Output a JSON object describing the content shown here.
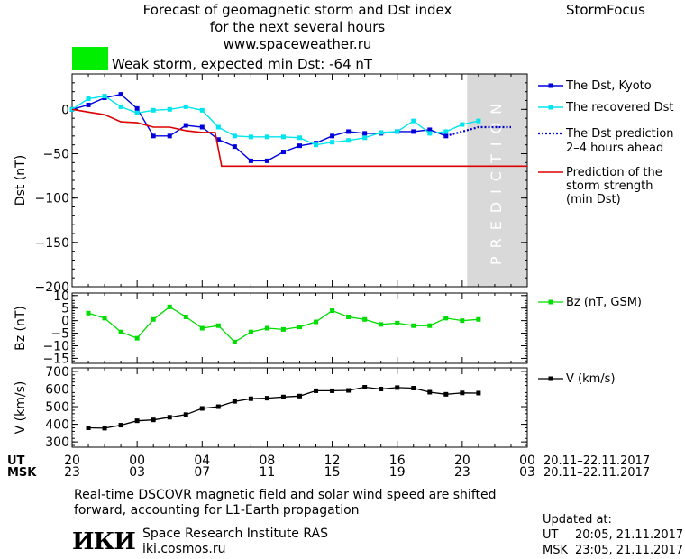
{
  "header": {
    "title_line1": "Forecast of geomagnetic storm and Dst index",
    "title_line2": "for the next several hours",
    "website": "www.spaceweather.ru",
    "brand": "StormFocus",
    "storm_label": "Weak storm, expected min Dst: -64 nT",
    "storm_color": "#00ee00"
  },
  "prediction_label": "PREDICTION",
  "legend": {
    "dst_kyoto": "The Dst, Kyoto",
    "dst_recovered": "The recovered Dst",
    "dst_prediction_1": "The Dst prediction",
    "dst_prediction_2": "2–4 hours ahead",
    "strength_1": "Prediction of the",
    "strength_2": "storm strength",
    "strength_3": "(min Dst)",
    "bz": "Bz (nT, GSM)",
    "v": "V (km/s)"
  },
  "colors": {
    "kyoto": "#0000dd",
    "recovered": "#00e5ee",
    "prediction": "#0000cc",
    "strength": "#dd0000",
    "bz": "#00dd00",
    "v": "#000000",
    "prediction_band": "#d9d9d9"
  },
  "time_axis": {
    "ut_label": "UT",
    "msk_label": "MSK",
    "ut_ticks": [
      "20",
      "00",
      "04",
      "08",
      "12",
      "16",
      "20",
      "00"
    ],
    "msk_ticks": [
      "23",
      "03",
      "07",
      "11",
      "15",
      "19",
      "23",
      "03"
    ],
    "ut_range": "20.11–22.11.2017",
    "msk_range": "20.11–22.11.2017"
  },
  "chart_data": [
    {
      "type": "line",
      "panel": "dst",
      "ylabel": "Dst (nT)",
      "ylim": [
        -200,
        40
      ],
      "yticks": [
        0,
        -50,
        -100,
        -150,
        -200
      ],
      "xlim": [
        0,
        28
      ],
      "prediction_start": 24.3,
      "series": [
        {
          "name": "The Dst, Kyoto",
          "points": [
            [
              0,
              0
            ],
            [
              1,
              5
            ],
            [
              2,
              13
            ],
            [
              3,
              17
            ],
            [
              4,
              1
            ],
            [
              5,
              -30
            ],
            [
              6,
              -30
            ],
            [
              7,
              -18
            ],
            [
              8,
              -20
            ],
            [
              9,
              -34
            ],
            [
              10,
              -42
            ],
            [
              11,
              -58
            ],
            [
              12,
              -58
            ],
            [
              13,
              -48
            ],
            [
              14,
              -41
            ],
            [
              15,
              -38
            ],
            [
              16,
              -30
            ],
            [
              17,
              -25
            ],
            [
              18,
              -27
            ],
            [
              19,
              -27
            ],
            [
              20,
              -25
            ],
            [
              21,
              -25
            ],
            [
              22,
              -23
            ],
            [
              23,
              -30
            ]
          ]
        },
        {
          "name": "The recovered Dst",
          "points": [
            [
              0,
              0
            ],
            [
              1,
              12
            ],
            [
              2,
              15
            ],
            [
              3,
              3
            ],
            [
              4,
              -4
            ],
            [
              5,
              -1
            ],
            [
              6,
              0
            ],
            [
              7,
              3
            ],
            [
              8,
              -1
            ],
            [
              9,
              -20
            ],
            [
              10,
              -30
            ],
            [
              11,
              -31
            ],
            [
              12,
              -31
            ],
            [
              13,
              -31
            ],
            [
              14,
              -32
            ],
            [
              15,
              -40
            ],
            [
              16,
              -37
            ],
            [
              17,
              -35
            ],
            [
              18,
              -32
            ],
            [
              19,
              -26
            ],
            [
              20,
              -25
            ],
            [
              21,
              -13
            ],
            [
              22,
              -27
            ],
            [
              23,
              -25
            ],
            [
              24,
              -17
            ],
            [
              25,
              -13
            ]
          ]
        },
        {
          "name": "The Dst prediction",
          "points": [
            [
              23,
              -30
            ],
            [
              25,
              -20
            ],
            [
              27,
              -20
            ]
          ]
        },
        {
          "name": "Prediction of the storm strength",
          "points": [
            [
              0,
              0
            ],
            [
              1,
              -3
            ],
            [
              2,
              -6
            ],
            [
              3,
              -14
            ],
            [
              4,
              -15
            ],
            [
              5,
              -20
            ],
            [
              6,
              -20
            ],
            [
              7,
              -24
            ],
            [
              8,
              -26
            ],
            [
              8.8,
              -26
            ],
            [
              9.2,
              -64
            ],
            [
              28,
              -64
            ]
          ]
        }
      ]
    },
    {
      "type": "line",
      "panel": "bz",
      "ylabel": "Bz (nT)",
      "ylim": [
        -17,
        11
      ],
      "yticks": [
        10,
        5,
        0,
        -5,
        -10,
        -15
      ],
      "series": [
        {
          "name": "Bz (nT, GSM)",
          "points": [
            [
              1,
              3
            ],
            [
              2,
              1
            ],
            [
              3,
              -4.5
            ],
            [
              4,
              -7
            ],
            [
              5,
              0.5
            ],
            [
              6,
              5.5
            ],
            [
              7,
              1.5
            ],
            [
              8,
              -3
            ],
            [
              9,
              -2
            ],
            [
              10,
              -8.5
            ],
            [
              11,
              -4.5
            ],
            [
              12,
              -3
            ],
            [
              13,
              -3.5
            ],
            [
              14,
              -2.5
            ],
            [
              15,
              -0.5
            ],
            [
              16,
              4
            ],
            [
              17,
              1.5
            ],
            [
              18,
              0.5
            ],
            [
              19,
              -1.5
            ],
            [
              20,
              -1
            ],
            [
              21,
              -2
            ],
            [
              22,
              -2
            ],
            [
              23,
              1
            ],
            [
              24,
              0
            ],
            [
              25,
              0.5
            ]
          ]
        }
      ]
    },
    {
      "type": "line",
      "panel": "v",
      "ylabel": "V (km/s)",
      "ylim": [
        270,
        720
      ],
      "yticks": [
        700,
        600,
        500,
        400,
        300
      ],
      "series": [
        {
          "name": "V (km/s)",
          "points": [
            [
              1,
              380
            ],
            [
              2,
              378
            ],
            [
              3,
              395
            ],
            [
              4,
              420
            ],
            [
              5,
              425
            ],
            [
              6,
              440
            ],
            [
              7,
              455
            ],
            [
              8,
              490
            ],
            [
              9,
              500
            ],
            [
              10,
              530
            ],
            [
              11,
              545
            ],
            [
              12,
              548
            ],
            [
              13,
              555
            ],
            [
              14,
              560
            ],
            [
              15,
              590
            ],
            [
              16,
              590
            ],
            [
              17,
              592
            ],
            [
              18,
              610
            ],
            [
              19,
              600
            ],
            [
              20,
              608
            ],
            [
              21,
              605
            ],
            [
              22,
              582
            ],
            [
              23,
              570
            ],
            [
              24,
              578
            ],
            [
              25,
              577
            ]
          ]
        }
      ]
    }
  ],
  "footer": {
    "note_line1": "Real-time DSCOVR magnetic field and solar wind speed are shifted",
    "note_line2": "forward, accounting for L1-Earth propagation",
    "institute": "Space Research Institute RAS",
    "institute_site": "iki.cosmos.ru",
    "logo_text": "ИКИ",
    "updated_label": "Updated at:",
    "updated_ut_label": "UT",
    "updated_ut": "20:05, 21.11.2017",
    "updated_msk_label": "MSK",
    "updated_msk": "23:05, 21.11.2017"
  }
}
